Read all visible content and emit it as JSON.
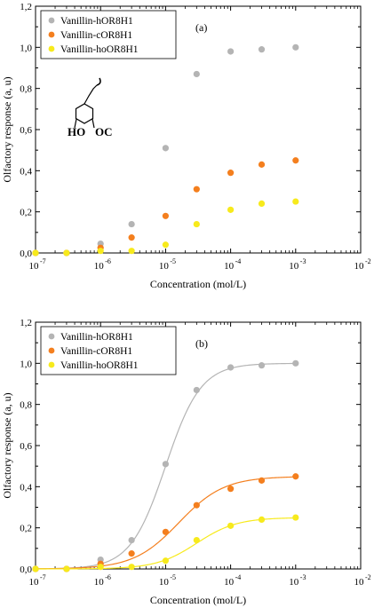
{
  "colors": {
    "series": [
      "#b4b4b4",
      "#f47f1e",
      "#f7ea1c"
    ]
  },
  "chart_data": [
    {
      "type": "scatter",
      "panel_label": "(a)",
      "xlabel": "Concentration (mol/L)",
      "ylabel": "Olfactory response (a, u)",
      "x_scale": "log",
      "xlim": [
        1e-07,
        0.01
      ],
      "ylim": [
        0,
        1.2
      ],
      "x_ticks": [
        1e-07,
        1e-06,
        1e-05,
        0.0001,
        0.001,
        0.01
      ],
      "x_tick_labels": [
        {
          "base": "10",
          "exp": "-7"
        },
        {
          "base": "10",
          "exp": "-6"
        },
        {
          "base": "10",
          "exp": "-5"
        },
        {
          "base": "10",
          "exp": "-4"
        },
        {
          "base": "10",
          "exp": "-3"
        },
        {
          "base": "10",
          "exp": "-2"
        }
      ],
      "y_ticks": [
        0,
        0.2,
        0.4,
        0.6,
        0.8,
        1.0,
        1.2
      ],
      "y_tick_labels": [
        "0,0",
        "0,2",
        "0,4",
        "0,6",
        "0,8",
        "1,0",
        "1,2"
      ],
      "legend_position": "top-left",
      "inset": "vanillin-structure",
      "inset_labels": [
        "HO",
        "OC"
      ],
      "x": [
        1e-07,
        3e-07,
        1e-06,
        3e-06,
        1e-05,
        3e-05,
        0.0001,
        0.0003,
        0.001
      ],
      "series": [
        {
          "name": "Vanillin-hOR8H1",
          "y": [
            0.0,
            0.0,
            0.045,
            0.14,
            0.51,
            0.87,
            0.98,
            0.99,
            1.0
          ]
        },
        {
          "name": "Vanillin-cOR8H1",
          "y": [
            0.0,
            0.0,
            0.025,
            0.075,
            0.18,
            0.31,
            0.39,
            0.43,
            0.45
          ]
        },
        {
          "name": "Vanillin-hoOR8H1",
          "y": [
            0.0,
            0.0,
            0.01,
            0.01,
            0.04,
            0.14,
            0.21,
            0.24,
            0.25
          ]
        }
      ]
    },
    {
      "type": "scatter",
      "panel_label": "(b)",
      "xlabel": "Concentration (mol/L)",
      "ylabel": "Olfactory response (a, u)",
      "x_scale": "log",
      "xlim": [
        1e-07,
        0.01
      ],
      "ylim": [
        0,
        1.2
      ],
      "x_ticks": [
        1e-07,
        1e-06,
        1e-05,
        0.0001,
        0.001,
        0.01
      ],
      "x_tick_labels": [
        {
          "base": "10",
          "exp": "-7"
        },
        {
          "base": "10",
          "exp": "-6"
        },
        {
          "base": "10",
          "exp": "-5"
        },
        {
          "base": "10",
          "exp": "-4"
        },
        {
          "base": "10",
          "exp": "-3"
        },
        {
          "base": "10",
          "exp": "-2"
        }
      ],
      "y_ticks": [
        0,
        0.2,
        0.4,
        0.6,
        0.8,
        1.0,
        1.2
      ],
      "y_tick_labels": [
        "0,0",
        "0,2",
        "0,4",
        "0,6",
        "0,8",
        "1,0",
        "1,2"
      ],
      "legend_position": "top-left",
      "fitted_curves": true,
      "x": [
        1e-07,
        3e-07,
        1e-06,
        3e-06,
        1e-05,
        3e-05,
        0.0001,
        0.0003,
        0.001
      ],
      "series": [
        {
          "name": "Vanillin-hOR8H1",
          "y": [
            0.0,
            0.0,
            0.045,
            0.14,
            0.51,
            0.87,
            0.98,
            0.99,
            1.0
          ],
          "fit": {
            "top": 1.0,
            "ec50": 1e-05,
            "hill": 1.6
          }
        },
        {
          "name": "Vanillin-cOR8H1",
          "y": [
            0.0,
            0.0,
            0.025,
            0.075,
            0.18,
            0.31,
            0.39,
            0.43,
            0.45
          ],
          "fit": {
            "top": 0.45,
            "ec50": 1.6e-05,
            "hill": 1.25
          }
        },
        {
          "name": "Vanillin-hoOR8H1",
          "y": [
            0.0,
            0.0,
            0.01,
            0.01,
            0.04,
            0.14,
            0.21,
            0.24,
            0.25
          ],
          "fit": {
            "top": 0.25,
            "ec50": 3e-05,
            "hill": 1.4
          }
        }
      ]
    }
  ]
}
